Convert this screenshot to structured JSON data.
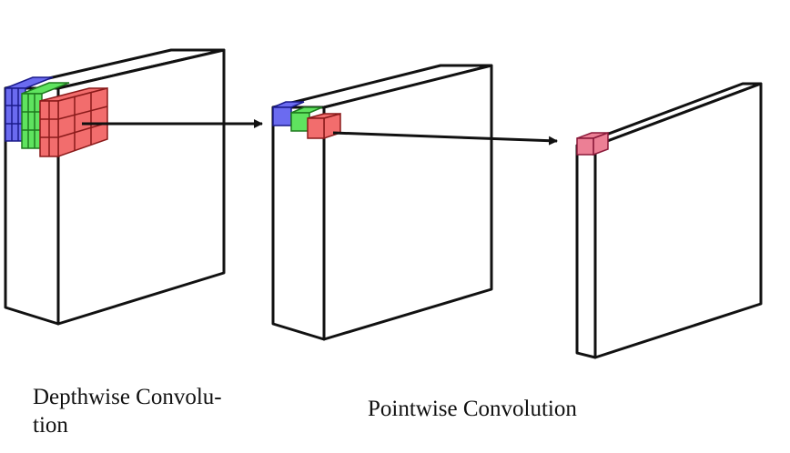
{
  "captions": {
    "depthwise_line1": "Depthwise Convolu-",
    "depthwise_line2": "tion",
    "pointwise": "Pointwise Convolution"
  },
  "colors": {
    "outline": "#111111",
    "face": "#ffffff",
    "channel_blue": "#6b6bf0",
    "channel_green": "#5fe35f",
    "channel_red": "#f26d6d",
    "output_pink": "#ec7f95"
  }
}
